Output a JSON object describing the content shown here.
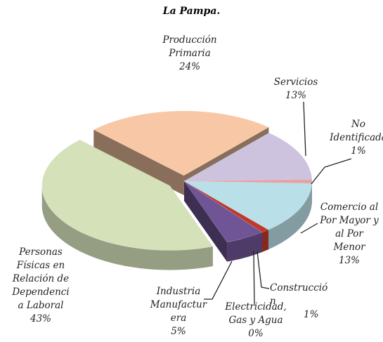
{
  "chart_data": {
    "type": "pie3d",
    "title": "La Pampa.",
    "categories": [
      "Producción\nPrimaria",
      "Servicios",
      "No\nIdentificada",
      "Comercio al\nPor Mayor y\nal Por\nMenor",
      "Construcció\nn",
      "Electricidad,\nGas y Agua",
      "Industria\nManufactur\nera",
      "Personas\nFísicas en\nRelación de\nDependenci\na Laboral"
    ],
    "values": [
      24,
      13,
      1,
      13,
      1,
      0,
      5,
      43
    ],
    "value_labels": [
      "24%",
      "13%",
      "1%",
      "13%",
      "1%",
      "0%",
      "5%",
      "43%"
    ],
    "colors": [
      "#f8c8a6",
      "#cdc3de",
      "#e6a1a4",
      "#b9dfe8",
      "#c0392b",
      "#9bbb59",
      "#6f5595",
      "#d5e1b9"
    ]
  }
}
